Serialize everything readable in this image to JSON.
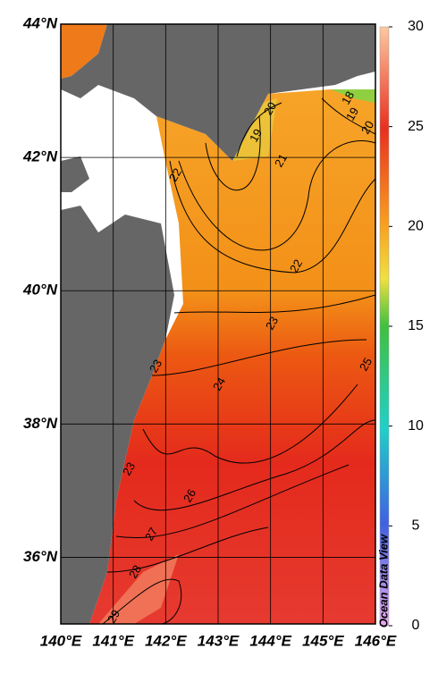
{
  "map": {
    "latlim": [
      35,
      44
    ],
    "lonlim": [
      140,
      146
    ],
    "lat_labels": [
      {
        "value": 36,
        "label": "36°N"
      },
      {
        "value": 38,
        "label": "38°N"
      },
      {
        "value": 40,
        "label": "40°N"
      },
      {
        "value": 42,
        "label": "42°N"
      },
      {
        "value": 44,
        "label": "44°N"
      }
    ],
    "lon_labels": [
      {
        "value": 140,
        "label": "140°E"
      },
      {
        "value": 141,
        "label": "141°E"
      },
      {
        "value": 142,
        "label": "142°E"
      },
      {
        "value": 143,
        "label": "143°E"
      },
      {
        "value": 144,
        "label": "144°E"
      },
      {
        "value": 145,
        "label": "145°E"
      },
      {
        "value": 146,
        "label": "146°E"
      }
    ],
    "contour_labels": [
      20,
      19,
      18,
      19,
      20,
      21,
      22,
      22,
      23,
      25,
      24,
      23,
      23,
      26,
      27,
      28,
      29
    ],
    "credit": "Ocean Data View"
  },
  "colorbar": {
    "lim": [
      0,
      30
    ],
    "ticks": [
      0,
      5,
      10,
      15,
      20,
      25,
      30
    ]
  }
}
